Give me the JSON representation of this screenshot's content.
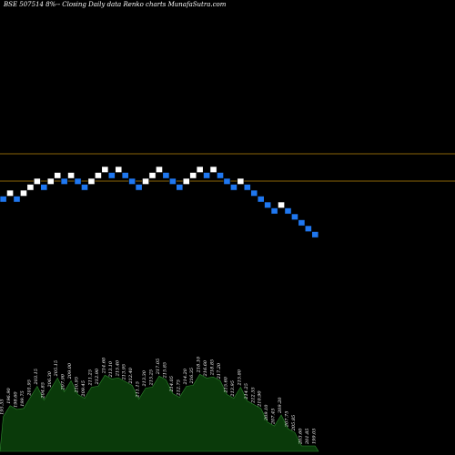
{
  "page_title": "BSE 507514  8%--  Closing Daily data  Renko  charts MunafaSutra.com",
  "colors": {
    "background": "#000000",
    "up_brick": "#ffffff",
    "down_brick": "#1f77f0",
    "brick_outline": "#000000",
    "reference_line": "#b8860b",
    "volume_fill": "#0a3a0a",
    "volume_stroke": "#2e8b2e"
  },
  "chart_data": {
    "type": "renko",
    "title": "BSE 507514  8%--  Closing Daily data  Renko  charts MunafaSutra.com",
    "brick_directions": [
      "down",
      "up",
      "down",
      "up",
      "up",
      "up",
      "down",
      "up",
      "up",
      "down",
      "up",
      "down",
      "down",
      "up",
      "up",
      "up",
      "down",
      "up",
      "down",
      "down",
      "down",
      "up",
      "up",
      "up",
      "down",
      "down",
      "down",
      "up",
      "up",
      "up",
      "down",
      "up",
      "down",
      "down",
      "down",
      "up",
      "down",
      "down",
      "down",
      "down",
      "down",
      "up",
      "down",
      "down",
      "down",
      "down",
      "down"
    ],
    "brick_price_labels": [
      "195.55",
      "196.90",
      "198.60",
      "199.75",
      "201.95",
      "203.15",
      "204.85",
      "206.30",
      "205.15",
      "207.90",
      "209.00",
      "210.95",
      "209.45",
      "211.25",
      "212.90",
      "214.60",
      "213.10",
      "215.40",
      "213.95",
      "212.40",
      "211.15",
      "213.30",
      "215.25",
      "217.05",
      "215.85",
      "214.05",
      "212.75",
      "214.20",
      "216.35",
      "218.10",
      "216.60",
      "218.85",
      "217.20",
      "215.60",
      "213.95",
      "215.80",
      "214.25",
      "212.55",
      "210.90",
      "209.10",
      "207.45",
      "209.20",
      "207.75",
      "205.85",
      "203.60",
      "201.85",
      "199.05"
    ],
    "reference_lines": [
      "upper",
      "lower"
    ],
    "volume_area": true
  }
}
